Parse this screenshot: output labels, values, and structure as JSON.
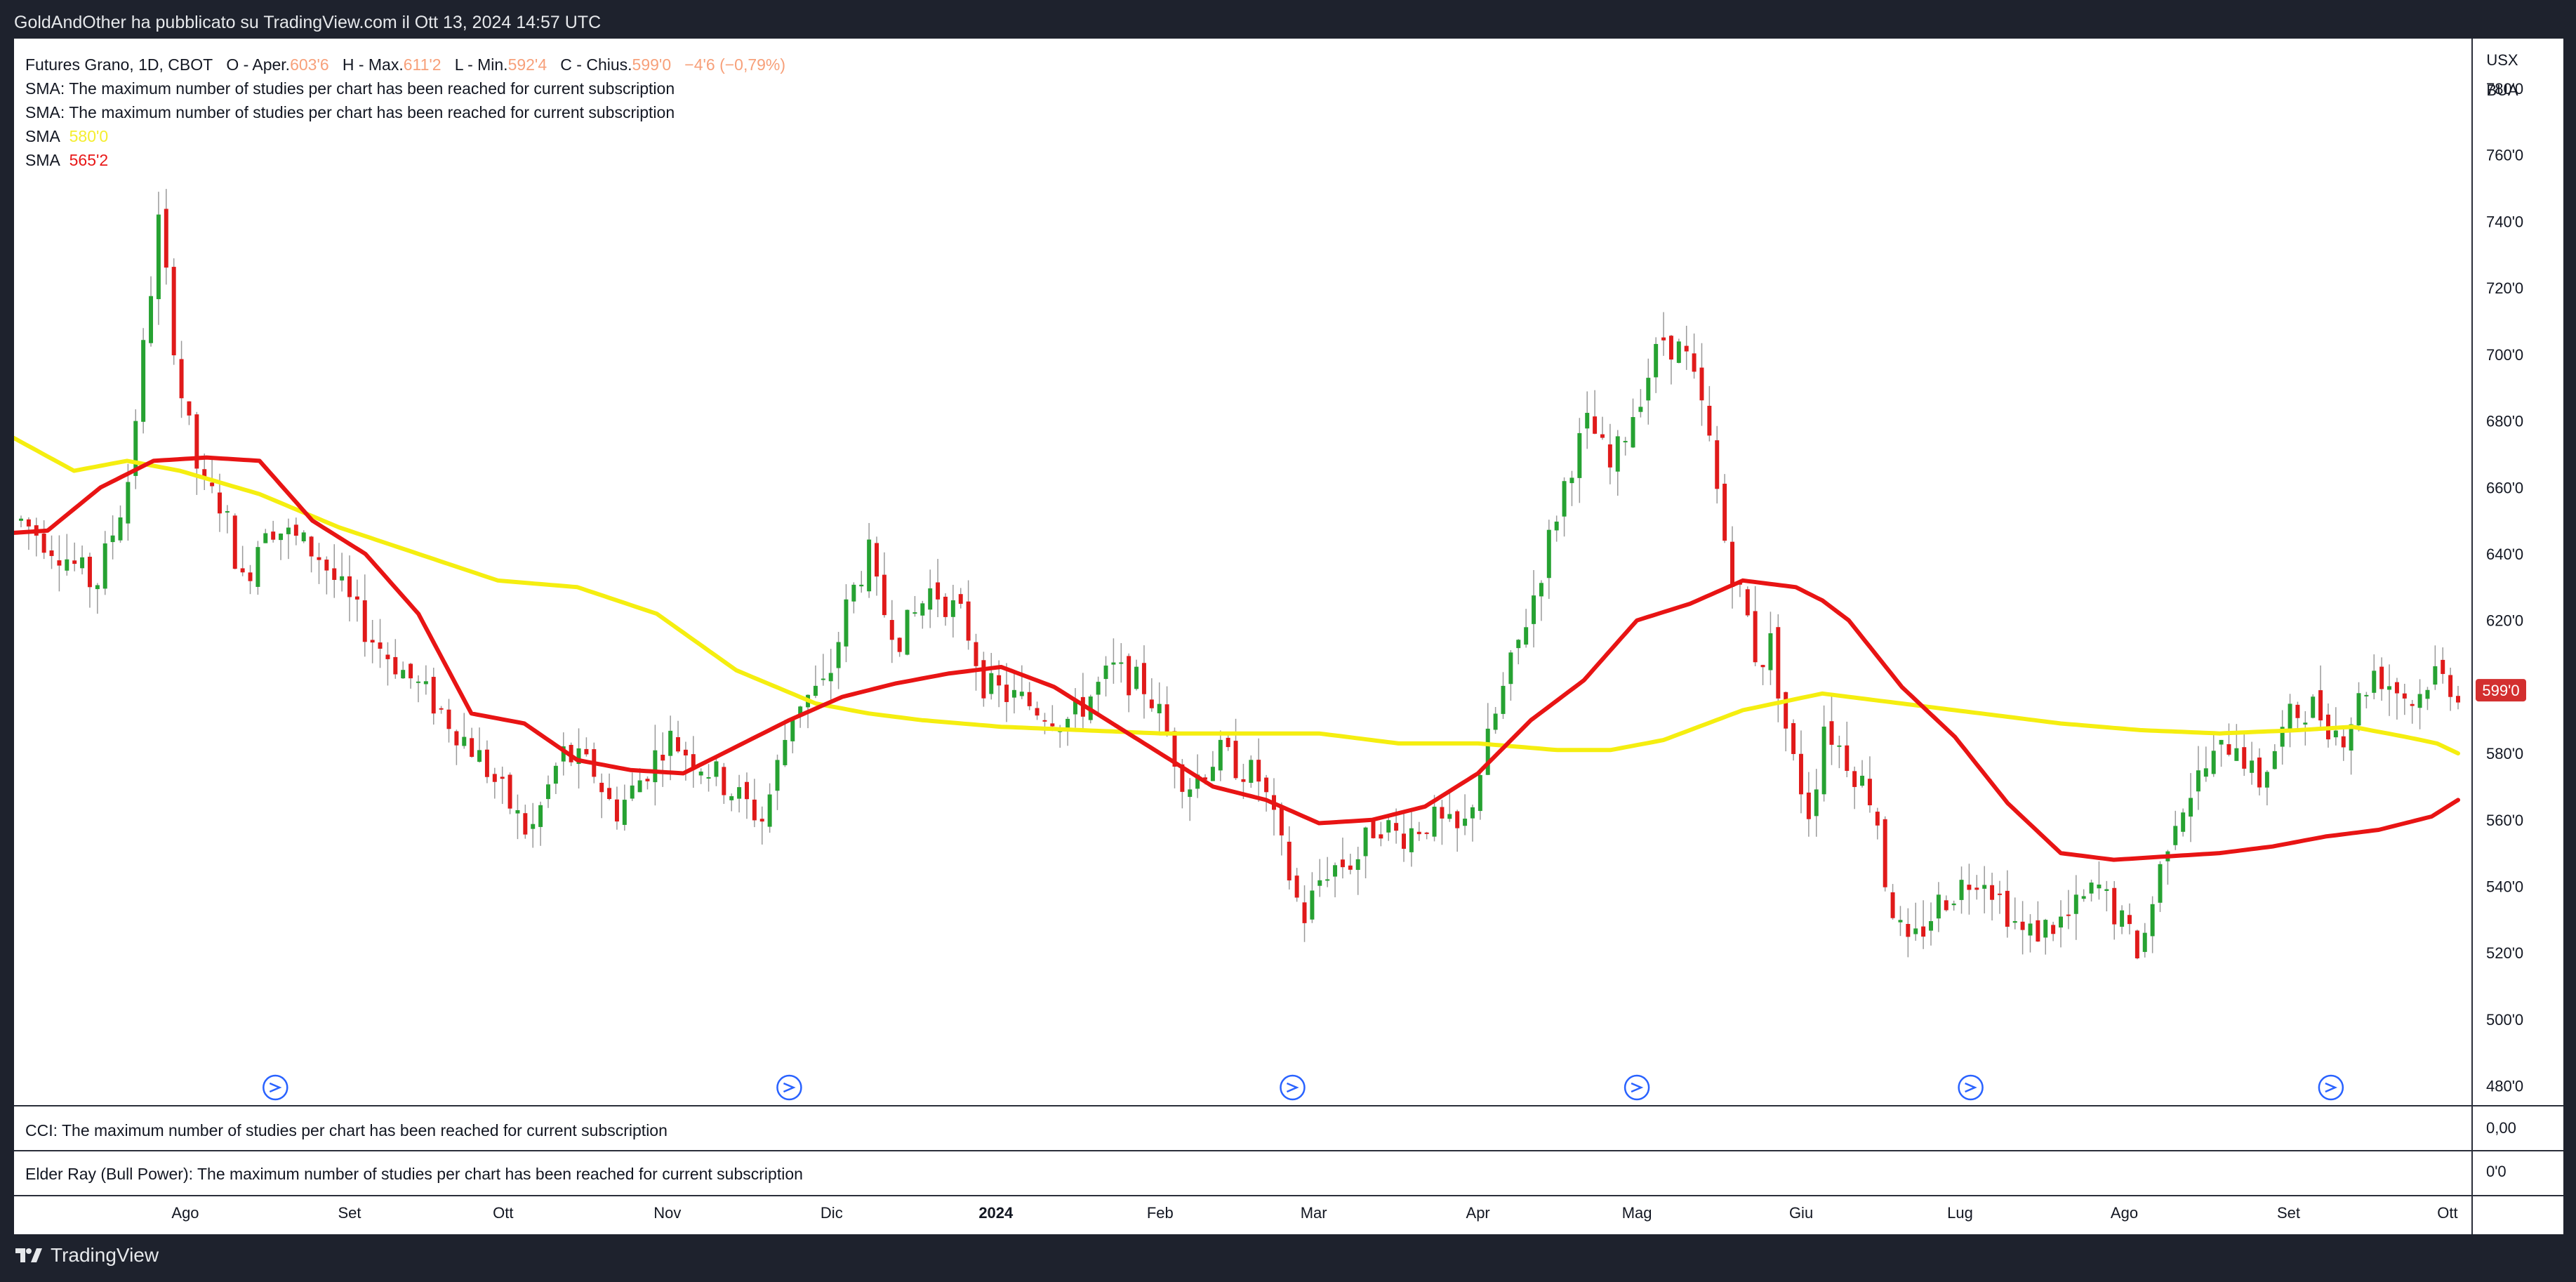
{
  "header": {
    "publisher_text": "GoldAndOther ha pubblicato su TradingView.com il Ott 13, 2024 14:57 UTC"
  },
  "legend": {
    "symbol": "Futures Grano, 1D, CBOT",
    "o_label": "O - Aper.",
    "o_value": "603'6",
    "h_label": "H - Max.",
    "h_value": "611'2",
    "l_label": "L - Min.",
    "l_value": "592'4",
    "c_label": "C - Chius.",
    "c_value": "599'0",
    "change": "−4'6 (−0,79%)",
    "sma_limit_1": "SMA: The maximum number of studies per chart has been reached for current subscription",
    "sma_limit_2": "SMA: The maximum number of studies per chart has been reached for current subscription",
    "sma_label": "SMA",
    "sma_yellow_value": "580'0",
    "sma_red_value": "565'2"
  },
  "scale": {
    "currency": "USX",
    "unit": "BUA",
    "last_price_badge": "599'0",
    "cci_zero": "0,00",
    "elder_zero": "0'0"
  },
  "panes": {
    "cci_text": "CCI: The maximum number of studies per chart has been reached for current subscription",
    "elder_text": "Elder Ray (Bull Power): The maximum number of studies per chart has been reached for current subscription"
  },
  "footer": {
    "brand": "TradingView"
  },
  "colors": {
    "up": "#26a232",
    "down": "#e01a1a",
    "sma_yellow": "#f5ee10",
    "sma_red": "#e81414",
    "badge": "#d32f2f"
  },
  "chart_data": {
    "type": "candlestick",
    "title": "Futures Grano, 1D, CBOT",
    "y_ticks": [
      "480'0",
      "500'0",
      "520'0",
      "540'0",
      "560'0",
      "580'0",
      "600'0",
      "620'0",
      "640'0",
      "660'0",
      "680'0",
      "700'0",
      "720'0",
      "740'0",
      "760'0",
      "780'0"
    ],
    "y_tick_values": [
      480,
      500,
      520,
      540,
      560,
      580,
      600,
      620,
      640,
      660,
      680,
      700,
      720,
      740,
      760,
      780
    ],
    "ylim": [
      474,
      795
    ],
    "x_ticks": [
      "Ago",
      "Set",
      "Ott",
      "Nov",
      "Dic",
      "2024",
      "Feb",
      "Mar",
      "Apr",
      "Mag",
      "Giu",
      "Lug",
      "Ago",
      "Set",
      "Ott"
    ],
    "x_range_days": [
      0,
      460
    ],
    "x_tick_days": [
      31,
      62,
      91,
      122,
      153,
      184,
      215,
      244,
      275,
      305,
      336,
      366,
      397,
      428,
      458
    ],
    "price_anchors_days": [
      0,
      8,
      14,
      20,
      23,
      26,
      30,
      34,
      38,
      42,
      46,
      56,
      66,
      72,
      78,
      86,
      96,
      102,
      108,
      112,
      116,
      122,
      130,
      140,
      146,
      152,
      156,
      160,
      162,
      166,
      172,
      178,
      182,
      190,
      198,
      206,
      212,
      214,
      220,
      226,
      234,
      240,
      242,
      246,
      252,
      256,
      260,
      266,
      272,
      278,
      282,
      286,
      292,
      296,
      300,
      306,
      310,
      314,
      318,
      322,
      326,
      328,
      330,
      334,
      338,
      340,
      344,
      350,
      352,
      356,
      362,
      370,
      378,
      386,
      392,
      400,
      406,
      412,
      418,
      422,
      428,
      432,
      438,
      444,
      448,
      452,
      455,
      460
    ],
    "price_anchors_close": [
      650,
      640,
      630,
      660,
      700,
      740,
      690,
      660,
      655,
      630,
      650,
      640,
      615,
      605,
      595,
      580,
      555,
      580,
      575,
      562,
      570,
      585,
      575,
      560,
      595,
      600,
      625,
      640,
      625,
      615,
      630,
      620,
      600,
      595,
      590,
      605,
      600,
      595,
      570,
      580,
      572,
      540,
      530,
      545,
      548,
      560,
      555,
      560,
      555,
      590,
      610,
      630,
      665,
      680,
      665,
      690,
      705,
      700,
      680,
      640,
      620,
      605,
      615,
      580,
      560,
      590,
      580,
      565,
      540,
      520,
      535,
      545,
      525,
      530,
      540,
      520,
      560,
      575,
      585,
      570,
      590,
      595,
      585,
      605,
      600,
      595,
      605,
      599
    ],
    "sma_yellow_days": [
      -5,
      10,
      20,
      30,
      45,
      60,
      75,
      90,
      105,
      120,
      135,
      150,
      160,
      170,
      185,
      200,
      215,
      230,
      245,
      260,
      275,
      290,
      300,
      310,
      325,
      340,
      355,
      370,
      385,
      400,
      415,
      430,
      440,
      450,
      456,
      460
    ],
    "sma_yellow_values": [
      678,
      665,
      668,
      665,
      658,
      648,
      640,
      632,
      630,
      622,
      605,
      595,
      592,
      590,
      588,
      587,
      586,
      586,
      586,
      583,
      583,
      581,
      581,
      584,
      593,
      598,
      595,
      592,
      589,
      587,
      586,
      587,
      588,
      585,
      583,
      580
    ],
    "sma_red_days": [
      -5,
      5,
      15,
      25,
      35,
      45,
      55,
      65,
      75,
      85,
      95,
      105,
      115,
      125,
      135,
      145,
      155,
      165,
      175,
      185,
      195,
      205,
      215,
      225,
      235,
      245,
      255,
      265,
      275,
      285,
      295,
      305,
      315,
      325,
      335,
      340,
      345,
      355,
      365,
      375,
      385,
      395,
      405,
      415,
      425,
      435,
      445,
      455,
      460
    ],
    "sma_red_values": [
      646,
      647,
      660,
      668,
      669,
      668,
      650,
      640,
      622,
      592,
      589,
      578,
      575,
      574,
      582,
      590,
      597,
      601,
      604,
      606,
      600,
      590,
      580,
      570,
      566,
      559,
      560,
      564,
      574,
      590,
      602,
      620,
      625,
      632,
      630,
      626,
      620,
      600,
      585,
      565,
      550,
      548,
      549,
      550,
      552,
      555,
      557,
      561,
      566
    ],
    "event_markers_days": [
      48,
      145,
      240,
      305,
      368,
      436
    ]
  }
}
